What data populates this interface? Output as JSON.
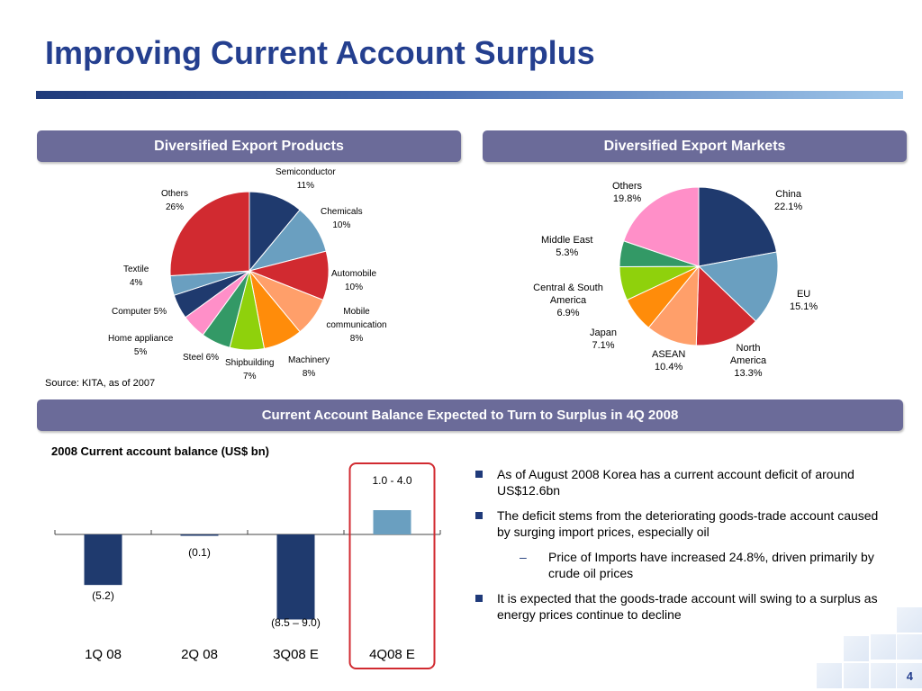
{
  "title": "Improving Current Account Surplus",
  "products_header": "Diversified Export Products",
  "markets_header": "Diversified Export Markets",
  "balance_header": "Current Account Balance Expected to Turn to Surplus in 4Q 2008",
  "source": "Source:  KITA, as of 2007",
  "chart_title": "2008 Current account balance (US$ bn)",
  "page_number": "4",
  "bullets": [
    {
      "text": "As of August 2008 Korea has a current account deficit of around US$12.6bn",
      "level": 1
    },
    {
      "text": "The deficit stems from the deteriorating goods-trade account caused by surging import prices, especially oil",
      "level": 1
    },
    {
      "text": "Price of Imports have increased 24.8%, driven primarily by crude oil prices",
      "level": 2
    },
    {
      "text": "It is expected that the goods-trade account will swing to a surplus as energy prices continue to decline",
      "level": 1
    }
  ],
  "dash": "–",
  "chart_data": [
    {
      "type": "pie",
      "title": "Diversified Export Products",
      "labels": [
        "Semiconductor",
        "Chemicals",
        "Automobile",
        "Mobile communication",
        "Machinery",
        "Shipbuilding",
        "Steel",
        "Home appliance",
        "Computer",
        "Textile",
        "Others"
      ],
      "values": [
        11,
        10,
        10,
        8,
        8,
        7,
        6,
        5,
        5,
        4,
        26
      ],
      "value_labels": [
        "11%",
        "10%",
        "10%",
        "8%",
        "8%",
        "7%",
        "6%",
        "5%",
        "5%",
        "4%",
        "26%"
      ],
      "colors": [
        "#1f3a6e",
        "#6a9fc0",
        "#d12a30",
        "#ff9f6a",
        "#ff8c0a",
        "#8fd10c",
        "#339966",
        "#ff8fc8",
        "#1f3a6e",
        "#6a9fc0",
        "#d12a30"
      ]
    },
    {
      "type": "pie",
      "title": "Diversified Export Markets",
      "labels": [
        "China",
        "EU",
        "North America",
        "ASEAN",
        "Japan",
        "Central & South America",
        "Middle East",
        "Others"
      ],
      "values": [
        22.1,
        15.1,
        13.3,
        10.4,
        7.1,
        6.9,
        5.3,
        19.8
      ],
      "value_labels": [
        "22.1%",
        "15.1%",
        "13.3%",
        "10.4%",
        "7.1%",
        "6.9%",
        "5.3%",
        "19.8%"
      ],
      "colors": [
        "#1f3a6e",
        "#6a9fc0",
        "#d12a30",
        "#ff9f6a",
        "#ff8c0a",
        "#8fd10c",
        "#339966",
        "#ff8fc8"
      ]
    },
    {
      "type": "bar",
      "title": "2008 Current account balance (US$ bn)",
      "categories": [
        "1Q 08",
        "2Q 08",
        "3Q08 E",
        "4Q08 E"
      ],
      "values": [
        -5.2,
        -0.1,
        -8.75,
        2.5
      ],
      "value_labels": [
        "(5.2)",
        "(0.1)",
        "(8.5 – 9.0)",
        "1.0 - 4.0"
      ],
      "colors": [
        "#1f3a6e",
        "#1f3a6e",
        "#1f3a6e",
        "#6a9fc0"
      ],
      "highlight": "4Q08 E",
      "highlight_color": "#d12a30"
    }
  ]
}
